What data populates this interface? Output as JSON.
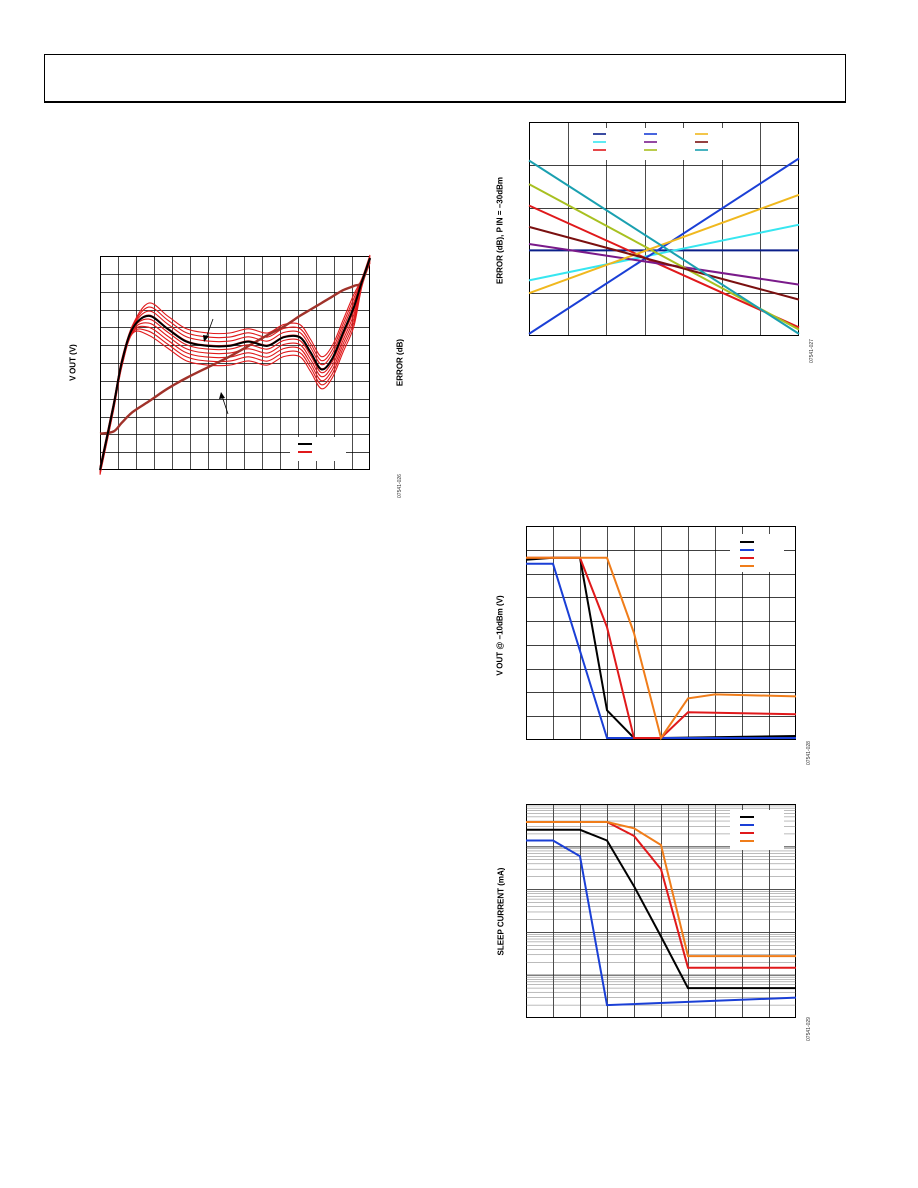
{
  "figures": {
    "fig1": {
      "ylabel": "V OUT (V)",
      "y2label": "ERROR (dB)",
      "fig_id": "07541-026"
    },
    "fig2": {
      "ylabel": "ERROR (dB), P IN = −30dBm",
      "fig_id": "07541-027"
    },
    "fig3": {
      "ylabel": "V OUT @ −10dBm (V)",
      "fig_id": "07541-028"
    },
    "fig4": {
      "ylabel": "SLEEP CURRENT (mA)",
      "fig_id": "07541-029"
    }
  },
  "chart_data": [
    {
      "id": "fig1",
      "type": "line",
      "xlabel": "",
      "ylabel": "V OUT (V)",
      "y2label": "ERROR (dB)",
      "grid": true,
      "legend": {
        "placement": "bottom-right",
        "colors": [
          "#000000",
          "#e0191b"
        ]
      },
      "xlim": [
        0,
        1
      ],
      "ylim": [
        0,
        1
      ],
      "x": [
        0.0,
        0.05,
        0.08,
        0.12,
        0.18,
        0.25,
        0.32,
        0.4,
        0.48,
        0.55,
        0.62,
        0.68,
        0.74,
        0.78,
        0.82,
        0.86,
        0.9,
        0.94,
        0.97,
        1.0
      ],
      "series": [
        {
          "role": "vout",
          "color": "#a0322a",
          "values": [
            0.17,
            0.18,
            0.22,
            0.27,
            0.32,
            0.38,
            0.43,
            0.48,
            0.53,
            0.58,
            0.63,
            0.67,
            0.72,
            0.75,
            0.78,
            0.81,
            0.84,
            0.86,
            0.88,
            0.99
          ]
        },
        {
          "role": "error-nominal",
          "color": "#000000",
          "values": [
            0.0,
            0.3,
            0.5,
            0.66,
            0.72,
            0.66,
            0.6,
            0.58,
            0.58,
            0.6,
            0.58,
            0.62,
            0.62,
            0.55,
            0.47,
            0.52,
            0.64,
            0.76,
            0.88,
            0.99
          ]
        }
      ],
      "error_band": {
        "color": "#e0191b",
        "count": 9,
        "offset_min": -0.09,
        "offset_max": 0.06
      }
    },
    {
      "id": "fig2",
      "type": "line",
      "ylabel": "ERROR (dB), P IN = −30dBm",
      "grid": true,
      "xlim": [
        0,
        1
      ],
      "ylim": [
        0,
        1
      ],
      "legend": {
        "placement": "top-left",
        "columns": 3,
        "colors": [
          "#0a1f8a",
          "#37e6f0",
          "#e0191b",
          "#1a3fd6",
          "#7a1a8a",
          "#a8c020",
          "#f0b81e",
          "#7a1010",
          "#1aa0b0"
        ]
      },
      "series": [
        {
          "color": "#0a1f8a",
          "x": [
            0,
            1
          ],
          "values": [
            0.4,
            0.4
          ]
        },
        {
          "color": "#37e6f0",
          "x": [
            0,
            1
          ],
          "values": [
            0.26,
            0.52
          ]
        },
        {
          "color": "#e0191b",
          "x": [
            0,
            1
          ],
          "values": [
            0.61,
            0.04
          ]
        },
        {
          "color": "#1a3fd6",
          "x": [
            0,
            1
          ],
          "values": [
            0.01,
            0.83
          ]
        },
        {
          "color": "#7a1a8a",
          "x": [
            0,
            1
          ],
          "values": [
            0.43,
            0.24
          ]
        },
        {
          "color": "#a8c020",
          "x": [
            0,
            1
          ],
          "values": [
            0.71,
            0.03
          ]
        },
        {
          "color": "#f0b81e",
          "x": [
            0,
            1
          ],
          "values": [
            0.2,
            0.66
          ]
        },
        {
          "color": "#7a1010",
          "x": [
            0,
            1
          ],
          "values": [
            0.51,
            0.17
          ]
        },
        {
          "color": "#1aa0b0",
          "x": [
            0,
            1
          ],
          "values": [
            0.82,
            0.01
          ]
        }
      ]
    },
    {
      "id": "fig3",
      "type": "line",
      "ylabel": "V OUT @ −10dBm (V)",
      "grid": true,
      "xlim": [
        0,
        1
      ],
      "ylim": [
        0,
        1
      ],
      "legend": {
        "placement": "top-right",
        "colors": [
          "#000000",
          "#1a3fd6",
          "#e0191b",
          "#f07d1a"
        ]
      },
      "series": [
        {
          "color": "#000000",
          "x": [
            0,
            0.1,
            0.2,
            0.3,
            0.4,
            0.5,
            1.0
          ],
          "values": [
            0.9,
            0.91,
            0.91,
            0.14,
            0.0,
            0.0,
            0.01
          ]
        },
        {
          "color": "#1a3fd6",
          "x": [
            0,
            0.1,
            0.3,
            1.0
          ],
          "values": [
            0.88,
            0.88,
            0.0,
            0.0
          ]
        },
        {
          "color": "#e0191b",
          "x": [
            0,
            0.1,
            0.2,
            0.3,
            0.4,
            0.5,
            0.6,
            1.0
          ],
          "values": [
            0.91,
            0.91,
            0.91,
            0.56,
            0.0,
            0.0,
            0.13,
            0.12
          ]
        },
        {
          "color": "#f07d1a",
          "x": [
            0,
            0.1,
            0.2,
            0.3,
            0.4,
            0.5,
            0.6,
            0.7,
            1.0
          ],
          "values": [
            0.91,
            0.91,
            0.91,
            0.91,
            0.53,
            0.0,
            0.2,
            0.22,
            0.21
          ]
        }
      ]
    },
    {
      "id": "fig4",
      "type": "line",
      "ylabel": "SLEEP CURRENT (mA)",
      "yscale": "log",
      "grid": true,
      "xlim": [
        0,
        1
      ],
      "ylim": [
        0.01,
        1000
      ],
      "legend": {
        "placement": "top-right",
        "colors": [
          "#000000",
          "#1a3fd6",
          "#e0191b",
          "#f07d1a"
        ]
      },
      "series": [
        {
          "color": "#000000",
          "x": [
            0,
            0.1,
            0.2,
            0.3,
            0.4,
            0.5,
            0.6,
            1.0
          ],
          "values": [
            250,
            250,
            250,
            140,
            12,
            0.8,
            0.05,
            0.05
          ]
        },
        {
          "color": "#1a3fd6",
          "x": [
            0,
            0.1,
            0.2,
            0.3,
            1.0
          ],
          "values": [
            140,
            140,
            60,
            0.02,
            0.03
          ]
        },
        {
          "color": "#e0191b",
          "x": [
            0,
            0.1,
            0.2,
            0.3,
            0.4,
            0.5,
            0.6,
            1.0
          ],
          "values": [
            380,
            380,
            380,
            380,
            180,
            30,
            0.15,
            0.15
          ]
        },
        {
          "color": "#f07d1a",
          "x": [
            0,
            0.1,
            0.2,
            0.3,
            0.4,
            0.5,
            0.6,
            1.0
          ],
          "values": [
            380,
            380,
            380,
            380,
            270,
            110,
            0.28,
            0.28
          ]
        }
      ]
    }
  ]
}
